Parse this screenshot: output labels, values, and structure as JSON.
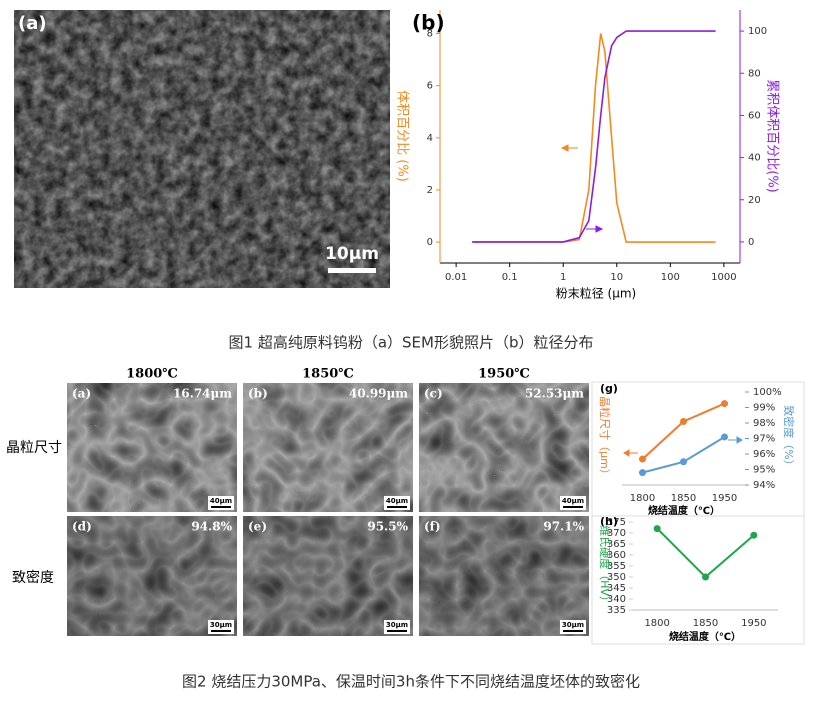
{
  "figure1": {
    "panel_a": {
      "label": "(a)",
      "scale_bar": "10μm"
    },
    "caption": "图1  超高纯原料钨粉（a）SEM形貌照片（b）粒径分布"
  },
  "chart_data": [
    {
      "type": "line",
      "panel_label": "(b)",
      "xscale": "log",
      "xlabel": "粉末粒径 (μm)",
      "ylabel": "体积百分比 (%)",
      "y2label": "累积体积百分比(%)",
      "x": [
        0.02,
        1,
        2,
        3,
        4,
        5,
        6,
        8,
        10,
        15,
        30,
        700
      ],
      "xlim": [
        0.005,
        2000
      ],
      "xticks": [
        0.01,
        0.1,
        1,
        10,
        100,
        1000
      ],
      "ylim": [
        -0.8,
        8.9
      ],
      "yticks": [
        0,
        2,
        4,
        6,
        8
      ],
      "y2lim": [
        -10,
        110
      ],
      "y2ticks": [
        0,
        20,
        40,
        60,
        80,
        100
      ],
      "series": [
        {
          "color": "#f28a1e",
          "values": [
            0,
            0,
            0.1,
            2,
            6,
            8,
            7.3,
            4,
            1.5,
            0,
            0,
            0
          ]
        },
        {
          "color": "#8a1ee6",
          "axis": "y2",
          "values": [
            0,
            0,
            2,
            10,
            35,
            60,
            78,
            93,
            97,
            100,
            100,
            100
          ]
        }
      ]
    },
    {
      "type": "line",
      "panel_label": "(g)",
      "xlabel": "烧结温度（℃）",
      "ylabel": "晶粒尺寸（μm）",
      "y2label": "致密度（%）",
      "categories": [
        "1800",
        "1850",
        "1950"
      ],
      "ylim": [
        0,
        60
      ],
      "y2lim": [
        94,
        100
      ],
      "y2ticks": [
        {
          "value": 94,
          "label": "94%"
        },
        {
          "value": 95,
          "label": "95%"
        },
        {
          "value": 96,
          "label": "96%"
        },
        {
          "value": 97,
          "label": "97%"
        },
        {
          "value": 98,
          "label": "98%"
        },
        {
          "value": 99,
          "label": "99%"
        },
        {
          "value": 100,
          "label": "100%"
        }
      ],
      "series": [
        {
          "color": "#ed7d31",
          "values": [
            16.74,
            40.99,
            52.53
          ]
        },
        {
          "color": "#5b9bd5",
          "axis": "y2",
          "values": [
            94.8,
            95.5,
            97.1
          ]
        }
      ]
    },
    {
      "type": "line",
      "panel_label": "(h)",
      "xlabel": "烧结温度（℃）",
      "ylabel": "维氏硬度（HV）",
      "categories": [
        "1800",
        "1850",
        "1950"
      ],
      "ylim": [
        335,
        375
      ],
      "yticks": [
        335,
        340,
        345,
        350,
        355,
        360,
        365,
        370,
        375
      ],
      "series": [
        {
          "color": "#1fa64a",
          "values": [
            372,
            350,
            369
          ]
        }
      ]
    }
  ],
  "figure2": {
    "column_headers": [
      "1800℃",
      "1850℃",
      "1950℃"
    ],
    "row_labels": [
      "晶粒尺寸",
      "致密度"
    ],
    "panels": [
      {
        "label": "(a)",
        "annotation": "16.74μm",
        "scale_bar": "40μm"
      },
      {
        "label": "(b)",
        "annotation": "40.99μm",
        "scale_bar": "40μm"
      },
      {
        "label": "(c)",
        "annotation": "52.53μm",
        "scale_bar": "40μm"
      },
      {
        "label": "(d)",
        "annotation": "94.8%",
        "scale_bar": "30μm"
      },
      {
        "label": "(e)",
        "annotation": "95.5%",
        "scale_bar": "30μm"
      },
      {
        "label": "(f)",
        "annotation": "97.1%",
        "scale_bar": "30μm"
      }
    ],
    "caption": "图2  烧结压力30MPa、保温时间3h条件下不同烧结温度坯体的致密化"
  }
}
